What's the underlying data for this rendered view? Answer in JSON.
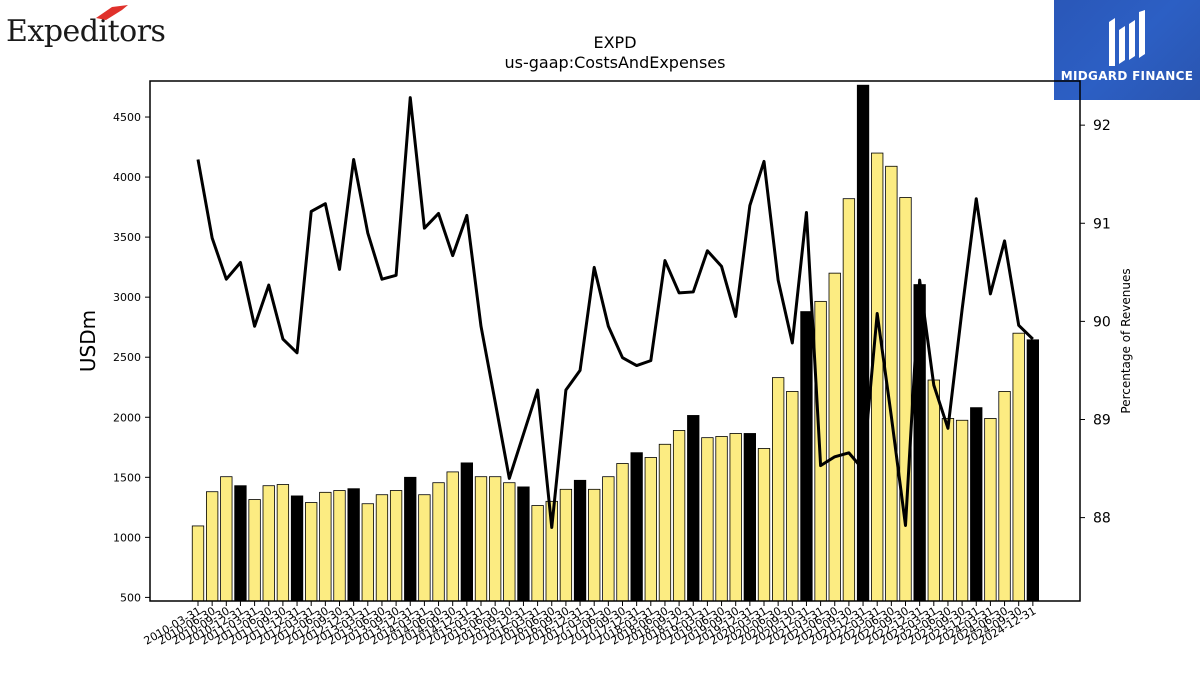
{
  "header": {
    "company_logo_text": "Expeditors",
    "sponsor_logo_text": "MIDGARD FINANCE"
  },
  "colors": {
    "bar_fill": "#fcec82",
    "bar_highlight": "#000000",
    "line": "#000000",
    "sponsor_bg": "#2b5bbf",
    "logo_red": "#e0312b"
  },
  "chart_data": {
    "type": "bar",
    "title": "EXPD",
    "subtitle": "us-gaap:CostsAndExpenses",
    "ylabel": "USDm",
    "y2label": "Percentage of Revenues",
    "ylim": [
      470,
      4800
    ],
    "y2lim": [
      87.15,
      92.45
    ],
    "yticks": [
      500,
      1000,
      1500,
      2000,
      2500,
      3000,
      3500,
      4000,
      4500
    ],
    "y2ticks": [
      88,
      89,
      90,
      91,
      92
    ],
    "grid": false,
    "categories": [
      "2010-03-31",
      "2010-06-30",
      "2010-09-30",
      "2010-12-31",
      "2011-03-31",
      "2011-06-30",
      "2011-09-30",
      "2011-12-31",
      "2012-03-31",
      "2012-06-30",
      "2012-09-30",
      "2012-12-31",
      "2013-03-31",
      "2013-06-30",
      "2013-09-30",
      "2013-12-31",
      "2014-03-31",
      "2014-06-30",
      "2014-09-30",
      "2014-12-31",
      "2015-03-31",
      "2015-06-30",
      "2015-09-30",
      "2015-12-31",
      "2016-03-31",
      "2016-06-30",
      "2016-09-30",
      "2016-12-31",
      "2017-03-31",
      "2017-06-30",
      "2017-09-30",
      "2017-12-31",
      "2018-03-31",
      "2018-06-30",
      "2018-09-30",
      "2018-12-31",
      "2019-03-31",
      "2019-06-30",
      "2019-09-30",
      "2019-12-31",
      "2020-03-31",
      "2020-06-30",
      "2020-09-30",
      "2020-12-31",
      "2021-03-31",
      "2021-06-30",
      "2021-09-30",
      "2021-12-31",
      "2022-03-31",
      "2022-06-30",
      "2022-09-30",
      "2022-12-31",
      "2023-03-31",
      "2023-06-30",
      "2023-09-30",
      "2023-12-31",
      "2024-03-31",
      "2024-06-30",
      "2024-09-30",
      "2024-12-31"
    ],
    "series": [
      {
        "type": "bar",
        "axis": "left",
        "values": [
          1095,
          1380,
          1505,
          1430,
          1315,
          1430,
          1440,
          1345,
          1290,
          1375,
          1390,
          1405,
          1280,
          1355,
          1390,
          1500,
          1355,
          1455,
          1545,
          1620,
          1505,
          1505,
          1455,
          1420,
          1265,
          1300,
          1400,
          1475,
          1400,
          1505,
          1615,
          1705,
          1665,
          1775,
          1890,
          2015,
          1830,
          1840,
          1865,
          1865,
          1740,
          2330,
          2215,
          2880,
          2965,
          3200,
          3820,
          4765,
          4200,
          4090,
          3830,
          3105,
          2310,
          1990,
          1975,
          2080,
          1990,
          2215,
          2700,
          2645
        ],
        "highlight": "every fourth bar (December quarters) drawn in black"
      },
      {
        "type": "line",
        "axis": "right",
        "values": [
          91.65,
          90.85,
          90.43,
          90.6,
          89.95,
          90.37,
          89.82,
          89.68,
          91.12,
          91.2,
          90.53,
          91.65,
          90.9,
          90.43,
          90.47,
          92.28,
          90.95,
          91.1,
          90.67,
          91.08,
          89.95,
          89.18,
          88.4,
          88.85,
          89.3,
          87.9,
          89.3,
          89.5,
          90.55,
          89.95,
          89.63,
          89.55,
          89.6,
          90.62,
          90.29,
          90.3,
          90.72,
          90.56,
          90.05,
          91.18,
          91.63,
          90.42,
          89.78,
          91.11,
          88.53,
          88.62,
          88.66,
          88.49,
          90.08,
          89.03,
          87.92,
          90.42,
          89.35,
          88.91,
          90.12,
          91.25,
          90.28,
          90.82,
          89.96,
          89.82
        ]
      }
    ]
  }
}
